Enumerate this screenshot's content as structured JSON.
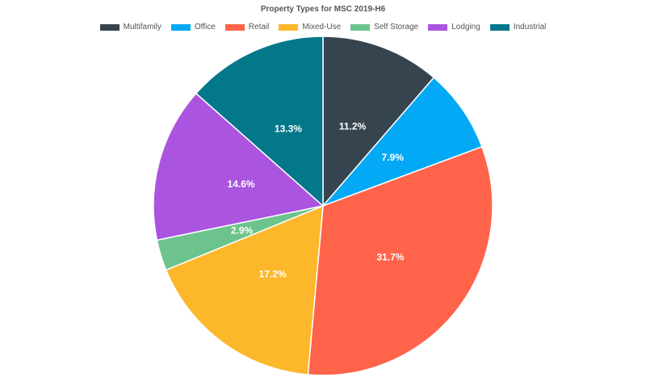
{
  "chart_data": {
    "type": "pie",
    "title": "Property Types for MSC 2019-H6",
    "legend_position": "top",
    "categories": [
      "Multifamily",
      "Office",
      "Retail",
      "Mixed-Use",
      "Self Storage",
      "Lodging",
      "Industrial"
    ],
    "values": [
      11.2,
      7.9,
      31.7,
      17.2,
      2.9,
      14.6,
      13.3
    ],
    "labels": [
      "11.2%",
      "7.9%",
      "31.7%",
      "17.2%",
      "2.9%",
      "14.6%",
      "13.3%"
    ],
    "colors": [
      "#36444f",
      "#03a9f4",
      "#ff634a",
      "#fcb72a",
      "#6cc38c",
      "#ab54e0",
      "#04788b"
    ]
  }
}
